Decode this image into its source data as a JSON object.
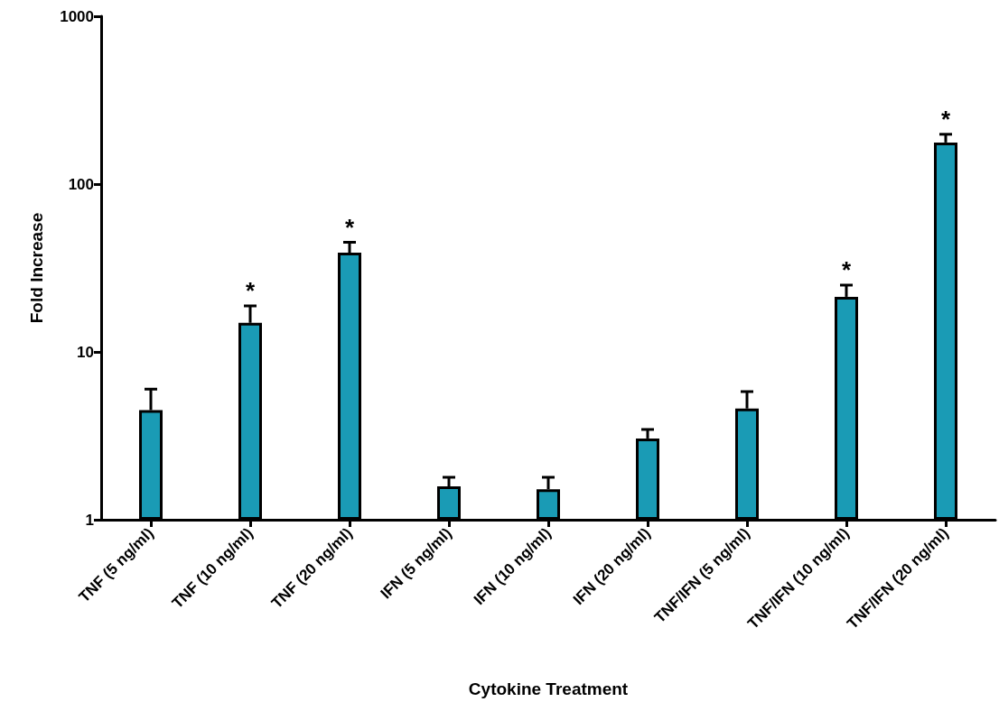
{
  "chart_data": {
    "type": "bar",
    "xlabel": "Cytokine Treatment",
    "ylabel": "Fold Increase",
    "categories": [
      "TNF (5 ng/ml)",
      "TNF (10 ng/ml)",
      "TNF (20 ng/ml)",
      "IFN (5 ng/ml)",
      "IFN (10 ng/ml)",
      "IFN (20 ng/ml)",
      "TNF/IFN (5 ng/ml)",
      "TNF/IFN (10 ng/ml)",
      "TNF/IFN (20 ng/ml)"
    ],
    "values": [
      4.5,
      14.9,
      39,
      1.58,
      1.52,
      3.05,
      4.6,
      21.3,
      177
    ],
    "errors": [
      [
        4.5,
        6.0
      ],
      [
        14.9,
        18.8
      ],
      [
        39,
        45
      ],
      [
        1.58,
        1.79
      ],
      [
        1.52,
        1.79
      ],
      [
        3.05,
        3.45
      ],
      [
        4.6,
        5.8
      ],
      [
        21.3,
        25
      ],
      [
        177,
        198
      ]
    ],
    "color": "#1a9bb5",
    "log": true,
    "ylim": [
      1,
      1000
    ],
    "yticks": [
      1,
      10,
      100,
      1000
    ],
    "grid": false,
    "annotations": [
      {
        "text": "*",
        "x": "TNF (10 ng/ml)",
        "y": 18.8
      },
      {
        "text": "*",
        "x": "TNF (20 ng/ml)",
        "y": 45
      },
      {
        "text": "*",
        "x": "TNF/IFN (10 ng/ml)",
        "y": 25
      },
      {
        "text": "*",
        "x": "TNF/IFN (20 ng/ml)",
        "y": 198
      }
    ]
  }
}
